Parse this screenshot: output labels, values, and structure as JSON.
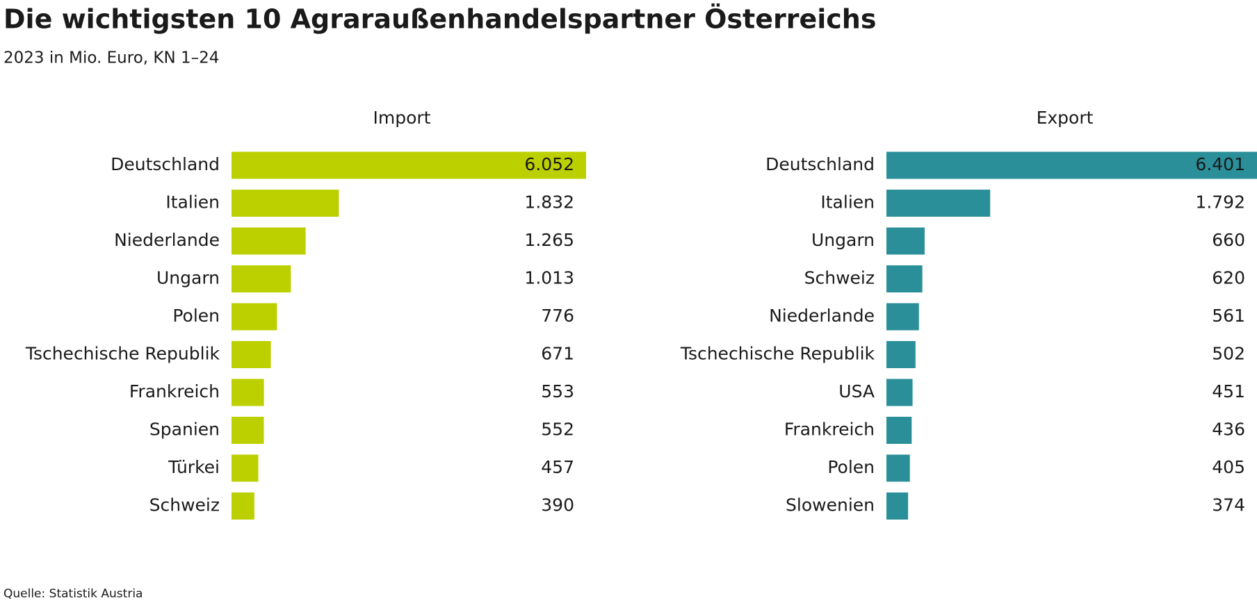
{
  "title": "Die wichtigsten 10 Agraraußenhandelspartner Österreichs",
  "subtitle": "2023 in Mio. Euro, KN 1–24",
  "source": "Quelle: Statistik Austria",
  "chart_data": [
    {
      "type": "bar",
      "orientation": "horizontal",
      "title": "Import",
      "color": "#bcd000",
      "categories": [
        "Deutschland",
        "Italien",
        "Niederlande",
        "Ungarn",
        "Polen",
        "Tschechische Republik",
        "Frankreich",
        "Spanien",
        "Türkei",
        "Schweiz"
      ],
      "values": [
        6052,
        1832,
        1265,
        1013,
        776,
        671,
        553,
        552,
        457,
        390
      ],
      "value_labels": [
        "6.052",
        "1.832",
        "1.265",
        "1.013",
        "776",
        "671",
        "553",
        "552",
        "457",
        "390"
      ],
      "xlim": [
        0,
        6052
      ]
    },
    {
      "type": "bar",
      "orientation": "horizontal",
      "title": "Export",
      "color": "#2a8f99",
      "categories": [
        "Deutschland",
        "Italien",
        "Ungarn",
        "Schweiz",
        "Niederlande",
        "Tschechische Republik",
        "USA",
        "Frankreich",
        "Polen",
        "Slowenien"
      ],
      "values": [
        6401,
        1792,
        660,
        620,
        561,
        502,
        451,
        436,
        405,
        374
      ],
      "value_labels": [
        "6.401",
        "1.792",
        "660",
        "620",
        "561",
        "502",
        "451",
        "436",
        "405",
        "374"
      ],
      "xlim": [
        0,
        6401
      ]
    }
  ]
}
